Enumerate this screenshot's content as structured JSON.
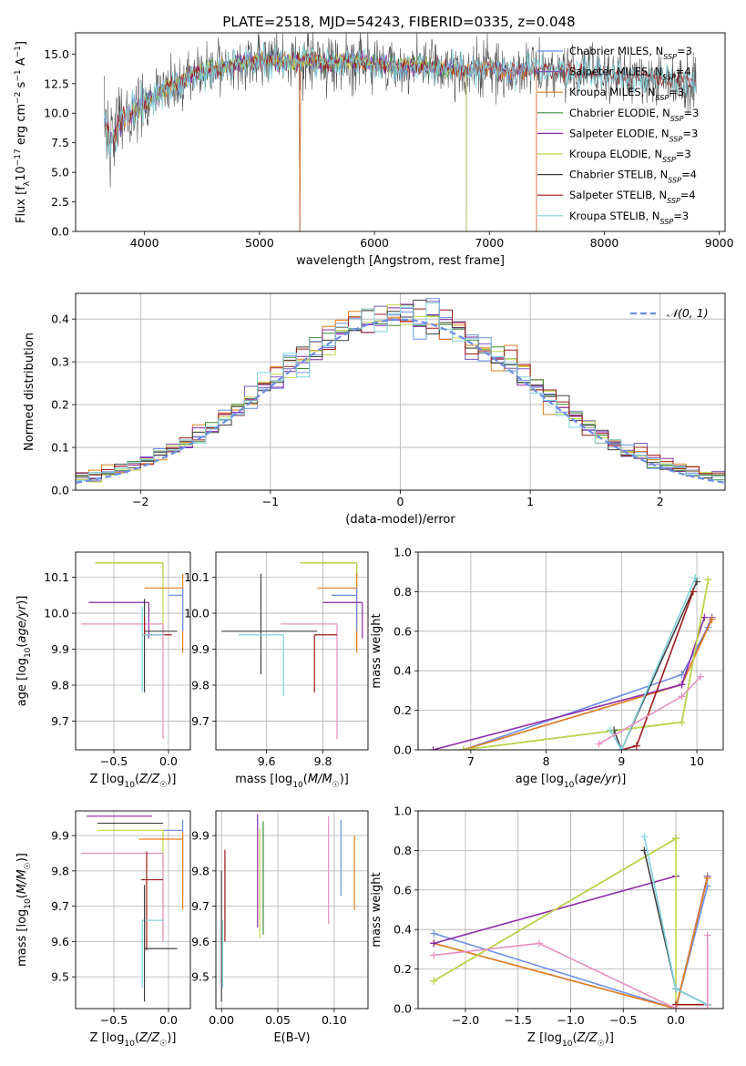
{
  "figure": {
    "title": "PLATE=2518, MJD=54243, FIBERID=0335, z=0.048"
  },
  "colors": [
    "#6b8ee8",
    "#7a57c2",
    "#e5801d",
    "#3f8a3a",
    "#8e2aa8",
    "#c3d84a",
    "#404040",
    "#9e1a1a",
    "#7fd3df"
  ],
  "chart_data": [
    {
      "id": "spectrum",
      "type": "line",
      "xlabel": "wavelength [Angstrom, rest frame]",
      "ylabel": "Flux [f_λ 10^-17 erg cm^-2 s^-1 A^-1]",
      "xlim": [
        3400,
        9050
      ],
      "ylim": [
        0,
        16.8
      ],
      "xticks": [
        4000,
        5000,
        6000,
        7000,
        8000,
        9000
      ],
      "yticks": [
        0.0,
        2.5,
        5.0,
        7.5,
        10.0,
        12.5,
        15.0
      ],
      "grid": false,
      "legend_position": "right",
      "series": [
        {
          "name": "Chabrier MILES, N",
          "sub": "SSP",
          "suffix": "=3",
          "color": "#6b8ee8",
          "x_range": [
            3650,
            7410
          ]
        },
        {
          "name": "Salpeter MILES, N",
          "sub": "SSP",
          "suffix": "=4",
          "color": "#7a57c2",
          "x_range": [
            3650,
            7410
          ]
        },
        {
          "name": "Kroupa MILES, N",
          "sub": "SSP",
          "suffix": "=3",
          "color": "#e5801d",
          "x_range": [
            3650,
            7410
          ]
        },
        {
          "name": "Chabrier ELODIE, N",
          "sub": "SSP",
          "suffix": "=3",
          "color": "#3f8a3a",
          "x_range": [
            3900,
            6800
          ]
        },
        {
          "name": "Salpeter ELODIE, N",
          "sub": "SSP",
          "suffix": "=3",
          "color": "#8e2aa8",
          "x_range": [
            3900,
            6800
          ]
        },
        {
          "name": "Kroupa ELODIE, N",
          "sub": "SSP",
          "suffix": "=3",
          "color": "#c3d84a",
          "x_range": [
            3900,
            6800
          ]
        },
        {
          "name": "Chabrier STELIB, N",
          "sub": "SSP",
          "suffix": "=4",
          "color": "#404040",
          "x_range": [
            3650,
            8800
          ]
        },
        {
          "name": "Salpeter STELIB, N",
          "sub": "SSP",
          "suffix": "=4",
          "color": "#9e1a1a",
          "x_range": [
            3650,
            8800
          ]
        },
        {
          "name": "Kroupa STELIB, N",
          "sub": "SSP",
          "suffix": "=3",
          "color": "#7fd3df",
          "x_range": [
            3650,
            8800
          ]
        }
      ],
      "continuum": {
        "x": [
          3650,
          3700,
          3800,
          3900,
          4000,
          4100,
          4200,
          4300,
          4400,
          4500,
          4600,
          4700,
          4800,
          4900,
          5000,
          5200,
          5400,
          5600,
          5800,
          6000,
          6200,
          6400,
          6600,
          6800,
          7000,
          7200,
          7400,
          7600,
          7800,
          8000,
          8200,
          8400,
          8600,
          8800
        ],
        "y": [
          9.5,
          7.5,
          9.5,
          10.0,
          10.8,
          11.5,
          12.3,
          12.5,
          13.2,
          13.5,
          13.6,
          13.9,
          14.1,
          14.3,
          14.6,
          14.3,
          14.5,
          14.2,
          14.5,
          14.2,
          13.9,
          14.1,
          13.7,
          13.6,
          13.8,
          13.4,
          13.8,
          13.6,
          13.5,
          13.3,
          13.1,
          13.0,
          12.8,
          12.5
        ]
      }
    },
    {
      "id": "residuals",
      "type": "bar",
      "xlabel": "(data-model)/error",
      "ylabel": "Normed distribution",
      "xlim": [
        -2.5,
        2.5
      ],
      "ylim": [
        0,
        0.46
      ],
      "xticks": [
        -2,
        -1,
        0,
        1,
        2
      ],
      "yticks": [
        0.0,
        0.1,
        0.2,
        0.3,
        0.4
      ],
      "grid": true,
      "bin_width": 0.1,
      "reference": {
        "name": "𝒩(0, 1)",
        "color": "#6b8ee8",
        "mean": 0,
        "sigma": 1
      },
      "legend_position": "top-right"
    },
    {
      "id": "age-vs-Z",
      "type": "scatter",
      "xlabel": "Z [log10(Z/Z☉)]",
      "ylabel": "age  [log10(age/yr)]",
      "xlim": [
        -0.85,
        0.2
      ],
      "ylim": [
        9.62,
        10.17
      ],
      "xticks": [
        -0.5,
        0.0
      ],
      "yticks": [
        9.7,
        9.8,
        9.9,
        10.0,
        10.1
      ],
      "grid": true,
      "points": [
        {
          "color": "#3f8a3a",
          "x": -0.05,
          "xerr_lo": 0.62,
          "xerr_hi": 0.0,
          "y": 10.14,
          "yerr_lo": 0.04,
          "yerr_hi": 0.0
        },
        {
          "color": "#c3d84a",
          "x": -0.05,
          "xerr_lo": 0.62,
          "xerr_hi": 0.0,
          "y": 10.14,
          "yerr_lo": 0.23,
          "yerr_hi": 0.0
        },
        {
          "color": "#e5801d",
          "x": 0.13,
          "xerr_lo": 0.35,
          "xerr_hi": 0.0,
          "y": 10.07,
          "yerr_lo": 0.18,
          "yerr_hi": 0.04
        },
        {
          "color": "#6b8ee8",
          "x": 0.13,
          "xerr_lo": 0.13,
          "xerr_hi": 0.0,
          "y": 10.05,
          "yerr_lo": 0.1,
          "yerr_hi": 0.02
        },
        {
          "color": "#8e2aa8",
          "x": -0.18,
          "xerr_lo": 0.55,
          "xerr_hi": 0.0,
          "y": 10.03,
          "yerr_lo": 0.1,
          "yerr_hi": 0.0
        },
        {
          "color": "#e88fc0",
          "x": -0.05,
          "xerr_lo": 0.75,
          "xerr_hi": 0.0,
          "y": 9.97,
          "yerr_lo": 0.32,
          "yerr_hi": 0.0
        },
        {
          "color": "#404040",
          "x": -0.22,
          "xerr_lo": 0.0,
          "xerr_hi": 0.3,
          "y": 9.95,
          "yerr_lo": 0.17,
          "yerr_hi": 0.09
        },
        {
          "color": "#9e1a1a",
          "x": -0.22,
          "xerr_lo": 0.0,
          "xerr_hi": 0.25,
          "y": 9.94,
          "yerr_lo": 0.0,
          "yerr_hi": 0.05
        },
        {
          "color": "#7fd3df",
          "x": -0.24,
          "xerr_lo": 0.0,
          "xerr_hi": 0.2,
          "y": 9.94,
          "yerr_lo": 0.16,
          "yerr_hi": 0.08
        }
      ]
    },
    {
      "id": "age-vs-mass",
      "type": "scatter",
      "xlabel": "mass [log10(M/M☉)]",
      "ylabel": "",
      "xlim": [
        9.42,
        9.96
      ],
      "ylim": [
        9.62,
        10.17
      ],
      "xticks": [
        9.6,
        9.8
      ],
      "yticks": [
        9.7,
        9.8,
        9.9,
        10.0,
        10.1
      ],
      "grid": true,
      "points": [
        {
          "color": "#3f8a3a",
          "x": 9.92,
          "xerr_lo": 0.2,
          "xerr_hi": 0.0,
          "y": 10.14,
          "yerr_lo": 0.04,
          "yerr_hi": 0.0
        },
        {
          "color": "#c3d84a",
          "x": 9.92,
          "xerr_lo": 0.2,
          "xerr_hi": 0.0,
          "y": 10.14,
          "yerr_lo": 0.23,
          "yerr_hi": 0.0
        },
        {
          "color": "#e5801d",
          "x": 9.92,
          "xerr_lo": 0.14,
          "xerr_hi": 0.0,
          "y": 10.07,
          "yerr_lo": 0.18,
          "yerr_hi": 0.04
        },
        {
          "color": "#6b8ee8",
          "x": 9.92,
          "xerr_lo": 0.09,
          "xerr_hi": 0.0,
          "y": 10.05,
          "yerr_lo": 0.1,
          "yerr_hi": 0.02
        },
        {
          "color": "#8e2aa8",
          "x": 9.94,
          "xerr_lo": 0.14,
          "xerr_hi": 0.0,
          "y": 10.03,
          "yerr_lo": 0.1,
          "yerr_hi": 0.0
        },
        {
          "color": "#e88fc0",
          "x": 9.85,
          "xerr_lo": 0.2,
          "xerr_hi": 0.0,
          "y": 9.97,
          "yerr_lo": 0.32,
          "yerr_hi": 0.0
        },
        {
          "color": "#404040",
          "x": 9.58,
          "xerr_lo": 0.14,
          "xerr_hi": 0.2,
          "y": 9.95,
          "yerr_lo": 0.12,
          "yerr_hi": 0.16
        },
        {
          "color": "#9e1a1a",
          "x": 9.77,
          "xerr_lo": 0.0,
          "xerr_hi": 0.08,
          "y": 9.94,
          "yerr_lo": 0.16,
          "yerr_hi": 0.0
        },
        {
          "color": "#7fd3df",
          "x": 9.66,
          "xerr_lo": 0.16,
          "xerr_hi": 0.0,
          "y": 9.94,
          "yerr_lo": 0.17,
          "yerr_hi": 0.0
        }
      ]
    },
    {
      "id": "weight-vs-age",
      "type": "line",
      "xlabel": "age  [log10(age/yr)]",
      "ylabel": "mass weight",
      "xlim": [
        6.3,
        10.35
      ],
      "ylim": [
        0,
        1.0
      ],
      "xticks": [
        7,
        8,
        9,
        10
      ],
      "yticks": [
        0.0,
        0.2,
        0.4,
        0.6,
        0.8,
        1.0
      ],
      "grid": true,
      "series": [
        {
          "color": "#6b8ee8",
          "x": [
            6.9,
            9.8,
            10.15
          ],
          "y": [
            0.0,
            0.38,
            0.62
          ]
        },
        {
          "color": "#7a57c2",
          "x": [
            6.9,
            9.8,
            10.2
          ],
          "y": [
            0.0,
            0.33,
            0.67
          ]
        },
        {
          "color": "#e5801d",
          "x": [
            6.9,
            9.8,
            10.2
          ],
          "y": [
            0.0,
            0.33,
            0.66
          ]
        },
        {
          "color": "#3f8a3a",
          "x": [
            6.9,
            9.8,
            10.15
          ],
          "y": [
            0.0,
            0.14,
            0.86
          ]
        },
        {
          "color": "#8e2aa8",
          "x": [
            6.5,
            9.8,
            10.1
          ],
          "y": [
            0.0,
            0.33,
            0.67
          ]
        },
        {
          "color": "#c3d84a",
          "x": [
            6.9,
            9.8,
            10.15
          ],
          "y": [
            0.0,
            0.14,
            0.86
          ]
        },
        {
          "color": "#404040",
          "x": [
            8.9,
            9.0,
            10.0
          ],
          "y": [
            0.1,
            0.0,
            0.85
          ]
        },
        {
          "color": "#9e1a1a",
          "x": [
            9.0,
            9.2,
            9.95
          ],
          "y": [
            0.0,
            0.02,
            0.8
          ]
        },
        {
          "color": "#7fd3df",
          "x": [
            8.85,
            9.0,
            9.98
          ],
          "y": [
            0.1,
            0.0,
            0.87
          ]
        },
        {
          "color": "#e88fc0",
          "x": [
            8.7,
            9.8,
            10.05
          ],
          "y": [
            0.03,
            0.27,
            0.37
          ]
        }
      ]
    },
    {
      "id": "mass-vs-Z",
      "type": "scatter",
      "xlabel": "Z [log10(Z/Z☉)]",
      "ylabel": "mass [log10(M/M☉)]",
      "xlim": [
        -0.85,
        0.2
      ],
      "ylim": [
        9.41,
        9.97
      ],
      "xticks": [
        -0.5,
        0.0
      ],
      "yticks": [
        9.5,
        9.6,
        9.7,
        9.8,
        9.9
      ],
      "grid": true,
      "points": [
        {
          "color": "#8e2aa8",
          "x": -0.15,
          "xerr_lo": 0.6,
          "xerr_hi": 0.0,
          "y": 9.955,
          "yerr_lo": 0.0,
          "yerr_hi": 0.0
        },
        {
          "color": "#404040",
          "x": -0.05,
          "xerr_lo": 0.6,
          "xerr_hi": 0.0,
          "y": 9.935,
          "yerr_lo": 0.0,
          "yerr_hi": 0.0
        },
        {
          "color": "#6b8ee8",
          "x": 0.13,
          "xerr_lo": 0.18,
          "xerr_hi": 0.0,
          "y": 9.915,
          "yerr_lo": 0.19,
          "yerr_hi": 0.03
        },
        {
          "color": "#c3d84a",
          "x": -0.05,
          "xerr_lo": 0.6,
          "xerr_hi": 0.0,
          "y": 9.915,
          "yerr_lo": 0.3,
          "yerr_hi": 0.0
        },
        {
          "color": "#e5801d",
          "x": 0.13,
          "xerr_lo": 0.4,
          "xerr_hi": 0.0,
          "y": 9.89,
          "yerr_lo": 0.2,
          "yerr_hi": 0.02
        },
        {
          "color": "#e88fc0",
          "x": -0.05,
          "xerr_lo": 0.75,
          "xerr_hi": 0.0,
          "y": 9.85,
          "yerr_lo": 0.25,
          "yerr_hi": 0.0
        },
        {
          "color": "#9e1a1a",
          "x": -0.2,
          "xerr_lo": 0.05,
          "xerr_hi": 0.15,
          "y": 9.775,
          "yerr_lo": 0.2,
          "yerr_hi": 0.08
        },
        {
          "color": "#7fd3df",
          "x": -0.24,
          "xerr_lo": 0.0,
          "xerr_hi": 0.2,
          "y": 9.66,
          "yerr_lo": 0.19,
          "yerr_hi": 0.0
        },
        {
          "color": "#404040",
          "x": -0.22,
          "xerr_lo": 0.0,
          "xerr_hi": 0.3,
          "y": 9.58,
          "yerr_lo": 0.15,
          "yerr_hi": 0.18
        }
      ]
    },
    {
      "id": "mass-vs-EBV",
      "type": "scatter",
      "xlabel": "E(B-V)",
      "ylabel": "",
      "xlim": [
        -0.005,
        0.13
      ],
      "ylim": [
        9.41,
        9.97
      ],
      "xticks": [
        0.0,
        0.05,
        0.1
      ],
      "yticks": [
        9.5,
        9.6,
        9.7,
        9.8,
        9.9
      ],
      "grid": true,
      "points": [
        {
          "color": "#404040",
          "x": 0.0,
          "y_range": [
            9.43,
            9.8
          ]
        },
        {
          "color": "#7fd3df",
          "x": 0.001,
          "y_range": [
            9.47,
            9.66
          ]
        },
        {
          "color": "#9e1a1a",
          "x": 0.003,
          "y_range": [
            9.6,
            9.86
          ]
        },
        {
          "color": "#8e2aa8",
          "x": 0.032,
          "y_range": [
            9.64,
            9.96
          ]
        },
        {
          "color": "#c3d84a",
          "x": 0.034,
          "y_range": [
            9.61,
            9.92
          ]
        },
        {
          "color": "#3f8a3a",
          "x": 0.037,
          "y_range": [
            9.62,
            9.94
          ]
        },
        {
          "color": "#e88fc0",
          "x": 0.095,
          "y_range": [
            9.65,
            9.955
          ]
        },
        {
          "color": "#6b8ee8",
          "x": 0.106,
          "y_range": [
            9.73,
            9.945
          ]
        },
        {
          "color": "#e5801d",
          "x": 0.118,
          "y_range": [
            9.69,
            9.9
          ]
        }
      ]
    },
    {
      "id": "weight-vs-Z",
      "type": "line",
      "xlabel": "Z [log10(Z/Z☉)]",
      "ylabel": "mass weight",
      "xlim": [
        -2.45,
        0.45
      ],
      "ylim": [
        0,
        1.0
      ],
      "xticks": [
        -2.0,
        -1.5,
        -1.0,
        -0.5,
        0.0
      ],
      "yticks": [
        0.0,
        0.2,
        0.4,
        0.6,
        0.8,
        1.0
      ],
      "grid": true,
      "series": [
        {
          "color": "#6b8ee8",
          "x": [
            -2.3,
            0.0,
            0.3
          ],
          "y": [
            0.38,
            0.0,
            0.62
          ]
        },
        {
          "color": "#7a57c2",
          "x": [
            -2.3,
            0.0,
            0.3
          ],
          "y": [
            0.33,
            0.0,
            0.67
          ]
        },
        {
          "color": "#e5801d",
          "x": [
            -2.3,
            0.0,
            0.3
          ],
          "y": [
            0.33,
            0.0,
            0.66
          ]
        },
        {
          "color": "#3f8a3a",
          "x": [
            -2.3,
            0.0,
            0.0
          ],
          "y": [
            0.14,
            0.86,
            0.86
          ]
        },
        {
          "color": "#8e2aa8",
          "x": [
            -2.3,
            0.0
          ],
          "y": [
            0.33,
            0.67
          ]
        },
        {
          "color": "#c3d84a",
          "x": [
            -2.3,
            0.0,
            0.0
          ],
          "y": [
            0.14,
            0.86,
            0.0
          ]
        },
        {
          "color": "#404040",
          "x": [
            -0.3,
            0.0,
            0.3
          ],
          "y": [
            0.8,
            0.1,
            0.02
          ]
        },
        {
          "color": "#9e1a1a",
          "x": [
            0.0,
            0.3
          ],
          "y": [
            0.02,
            0.02
          ]
        },
        {
          "color": "#7fd3df",
          "x": [
            -0.3,
            0.0,
            0.3
          ],
          "y": [
            0.87,
            0.1,
            0.02
          ]
        },
        {
          "color": "#e88fc0",
          "x": [
            -2.3,
            -1.3,
            0.0,
            0.3,
            0.3
          ],
          "y": [
            0.27,
            0.33,
            0.0,
            0.0,
            0.37
          ]
        }
      ]
    }
  ]
}
